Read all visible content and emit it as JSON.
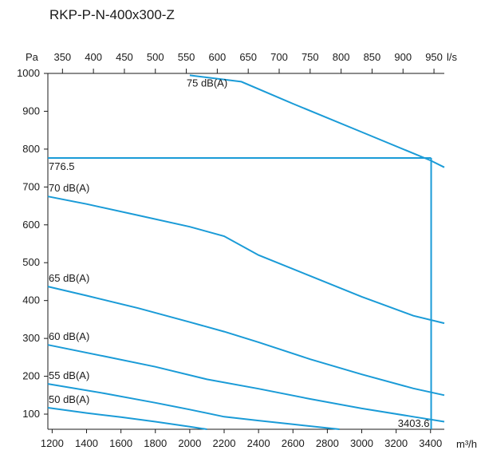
{
  "chart_data": {
    "type": "line",
    "title": "RKP-P-N-400x300-Z",
    "x_unit": "m³/h",
    "x_unit_top": "l/s",
    "y_unit": "Pa",
    "xlim": [
      1175,
      3480
    ],
    "ylim": [
      60,
      1000
    ],
    "x_ticks": [
      1200,
      1400,
      1600,
      1800,
      2000,
      2200,
      2400,
      2600,
      2800,
      3000,
      3200,
      3400
    ],
    "x_tick_labels": [
      "1200",
      "1400",
      "1600",
      "1800",
      "2000",
      "2200",
      "2400",
      "2600",
      "2800",
      "3000",
      "3200",
      "3400"
    ],
    "x_top_ticks": [
      350,
      400,
      450,
      500,
      550,
      600,
      650,
      700,
      750,
      800,
      850,
      900,
      950
    ],
    "x_top_tick_labels": [
      "350",
      "400",
      "450",
      "500",
      "550",
      "600",
      "650",
      "700",
      "750",
      "800",
      "850",
      "900",
      "950"
    ],
    "y_ticks": [
      100,
      200,
      300,
      400,
      500,
      600,
      700,
      800,
      900,
      1000
    ],
    "y_tick_labels": [
      "100",
      "200",
      "300",
      "400",
      "500",
      "600",
      "700",
      "800",
      "900",
      "1000"
    ],
    "series": [
      {
        "name": "75 dB(A)",
        "x": [
          2000,
          2300,
          2600,
          3000,
          3400,
          3480
        ],
        "y": [
          995,
          978,
          920,
          845,
          770,
          752
        ]
      },
      {
        "name": "70 dB(A)",
        "x": [
          1175,
          1400,
          1700,
          2000,
          2200,
          2400,
          2700,
          3000,
          3300,
          3480
        ],
        "y": [
          675,
          655,
          625,
          595,
          570,
          520,
          465,
          410,
          360,
          340
        ]
      },
      {
        "name": "65 dB(A)",
        "x": [
          1175,
          1400,
          1700,
          2000,
          2200,
          2400,
          2700,
          3000,
          3300,
          3480
        ],
        "y": [
          437,
          413,
          380,
          343,
          318,
          290,
          245,
          205,
          168,
          150
        ]
      },
      {
        "name": "60 dB(A)",
        "x": [
          1175,
          1500,
          1800,
          2100,
          2400,
          2700,
          3000,
          3300,
          3480
        ],
        "y": [
          283,
          253,
          225,
          192,
          167,
          140,
          115,
          93,
          80
        ]
      },
      {
        "name": "55 dB(A)",
        "x": [
          1175,
          1500,
          1800,
          2000,
          2200,
          2400,
          2600,
          2870
        ],
        "y": [
          180,
          155,
          130,
          112,
          93,
          83,
          73,
          60
        ]
      },
      {
        "name": "50 dB(A)",
        "x": [
          1175,
          1400,
          1600,
          1800,
          2000,
          2100
        ],
        "y": [
          117,
          103,
          92,
          80,
          67,
          60
        ]
      }
    ],
    "operating_point": {
      "x": 3403.6,
      "y": 776.5,
      "x_label": "3403.6",
      "y_label": "776.5"
    },
    "grid": false,
    "legend": "none"
  }
}
